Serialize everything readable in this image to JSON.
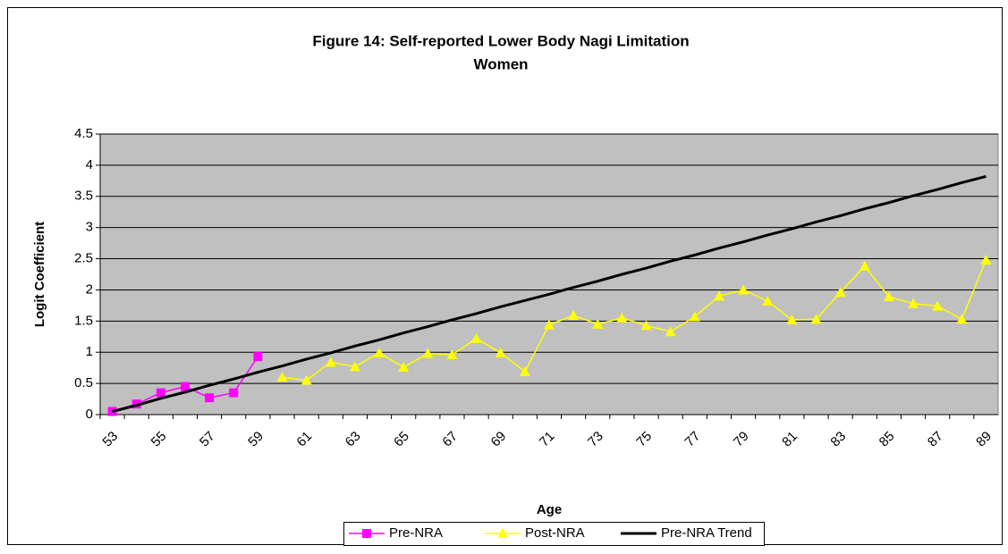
{
  "chart_data": {
    "type": "line",
    "title": "Figure 14: Self-reported Lower Body Nagi Limitation",
    "subtitle": "Women",
    "x_label": "Age",
    "y_label": "Logit Coefficient",
    "categories": [
      "53",
      null,
      "55",
      null,
      "57",
      null,
      "59",
      null,
      "61",
      null,
      "63",
      null,
      "65",
      null,
      "67",
      null,
      "69",
      null,
      "71",
      null,
      "73",
      null,
      "75",
      null,
      "77",
      null,
      "79",
      null,
      "81",
      null,
      "83",
      null,
      "85",
      null,
      "87",
      null,
      "89"
    ],
    "ylim": [
      0,
      4.5
    ],
    "yticks": [
      0,
      0.5,
      1,
      1.5,
      2,
      2.5,
      3,
      3.5,
      4,
      4.5
    ],
    "grid": true,
    "series": [
      {
        "name": "Pre-NRA",
        "color": "#ff00ff",
        "marker": "square",
        "values": [
          0.05,
          0.17,
          0.35,
          0.45,
          0.27,
          0.35,
          0.93,
          null,
          null,
          null,
          null,
          null,
          null,
          null,
          null,
          null,
          null,
          null,
          null,
          null,
          null,
          null,
          null,
          null,
          null,
          null,
          null,
          null,
          null,
          null,
          null,
          null,
          null,
          null,
          null,
          null,
          null
        ]
      },
      {
        "name": "Post-NRA",
        "color": "#ffff00",
        "marker": "triangle",
        "values": [
          null,
          null,
          null,
          null,
          null,
          null,
          null,
          0.6,
          0.55,
          0.84,
          0.77,
          0.99,
          0.76,
          0.98,
          0.96,
          1.22,
          0.99,
          0.69,
          1.44,
          1.59,
          1.45,
          1.55,
          1.43,
          1.33,
          1.57,
          1.9,
          2.0,
          1.82,
          1.52,
          1.53,
          1.96,
          2.38,
          1.89,
          1.78,
          1.74,
          1.53,
          2.48
        ]
      },
      {
        "name": "Pre-NRA Trend",
        "color": "#000000",
        "marker": "none",
        "values": [
          0.05,
          0.15,
          0.26,
          0.36,
          0.47,
          0.57,
          0.68,
          0.78,
          0.89,
          0.99,
          1.1,
          1.2,
          1.31,
          1.41,
          1.52,
          1.62,
          1.73,
          1.83,
          1.93,
          2.04,
          2.14,
          2.25,
          2.35,
          2.46,
          2.56,
          2.67,
          2.77,
          2.88,
          2.98,
          3.09,
          3.19,
          3.3,
          3.4,
          3.51,
          3.61,
          3.72,
          3.82
        ]
      }
    ]
  }
}
